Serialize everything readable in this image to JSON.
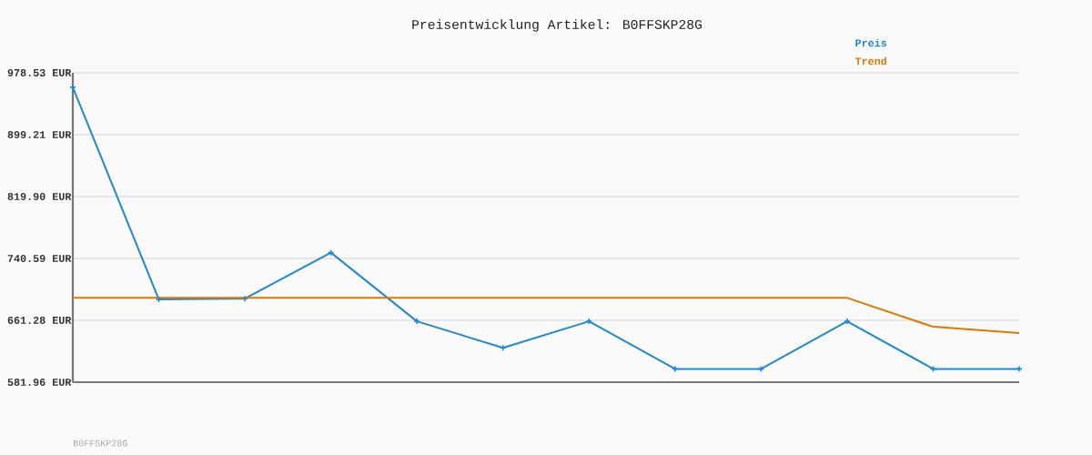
{
  "chart_data": {
    "type": "line",
    "title": "Preisentwicklung Artikel: B0FFSKP28G",
    "categories": [
      null,
      null,
      null,
      null,
      null,
      null,
      null,
      null,
      null,
      null,
      null,
      null
    ],
    "series": [
      {
        "name": "Preis",
        "color": "#2188d2",
        "marker": "cross",
        "values": [
          960,
          688,
          689,
          748,
          660,
          626,
          660,
          599,
          599,
          660,
          599,
          599
        ]
      },
      {
        "name": "Trend",
        "color": "#e07800",
        "values": [
          690,
          690,
          690,
          690,
          690,
          690,
          690,
          690,
          690,
          690,
          653,
          645
        ]
      }
    ],
    "ylim": [
      581.96,
      978.53
    ],
    "yticks": [
      {
        "value": 581.96,
        "label": "581.96 EUR"
      },
      {
        "value": 661.28,
        "label": "661.28 EUR"
      },
      {
        "value": 740.59,
        "label": "740.59 EUR"
      },
      {
        "value": 819.9,
        "label": "819.90 EUR"
      },
      {
        "value": 899.21,
        "label": "899.21 EUR"
      },
      {
        "value": 978.53,
        "label": "978.53 EUR"
      }
    ],
    "grid": "y",
    "legend": "top right",
    "annotations": [
      "B0FFSKP28G"
    ]
  }
}
